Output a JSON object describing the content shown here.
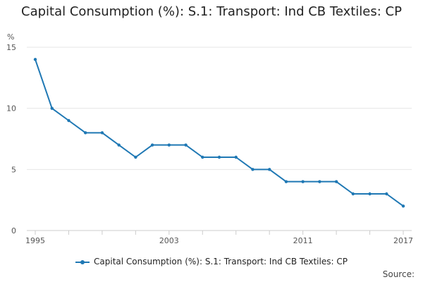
{
  "chart_data": {
    "type": "line",
    "title": "Capital Consumption (%): S.1: Transport: Ind CB Textiles: CP",
    "unit_label": "%",
    "xlabel": "",
    "ylabel": "%",
    "ylim": [
      0,
      15
    ],
    "y_ticks": [
      0,
      5,
      10,
      15
    ],
    "x_tick_labels": [
      "1995",
      "2003",
      "2011",
      "2017"
    ],
    "grid": true,
    "legend_position": "bottom",
    "x": [
      1995,
      1996,
      1997,
      1998,
      1999,
      2000,
      2001,
      2002,
      2003,
      2004,
      2005,
      2006,
      2007,
      2008,
      2009,
      2010,
      2011,
      2012,
      2013,
      2014,
      2015,
      2016,
      2017
    ],
    "series": [
      {
        "name": "Capital Consumption (%): S.1: Transport: Ind CB Textiles: CP",
        "color": "#1f78b4",
        "values": [
          14,
          10,
          9,
          8,
          8,
          7,
          6,
          7,
          7,
          7,
          6,
          6,
          6,
          5,
          5,
          4,
          4,
          4,
          4,
          3,
          3,
          3,
          2
        ]
      }
    ]
  },
  "legend": {
    "label": "Capital Consumption (%): S.1: Transport: Ind CB Textiles: CP"
  },
  "source": {
    "label": "Source:"
  }
}
